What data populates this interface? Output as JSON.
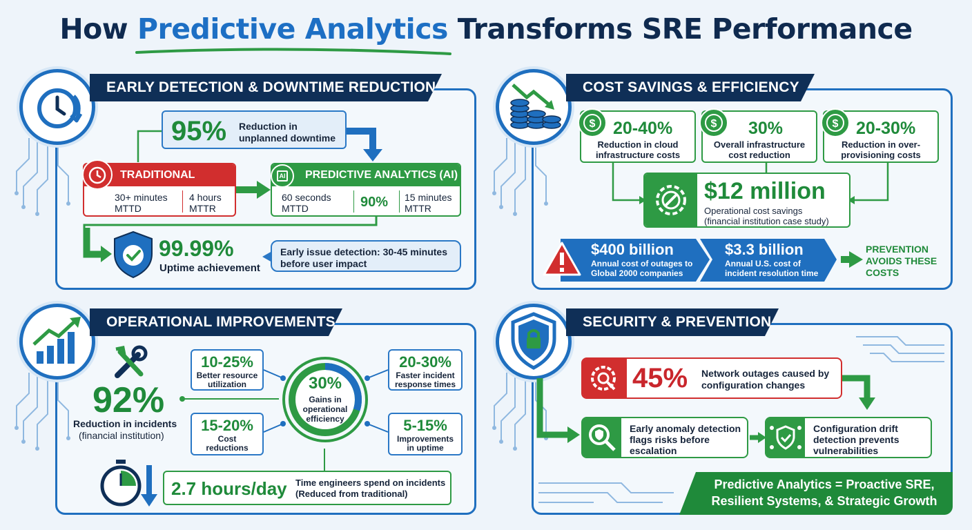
{
  "title": {
    "part1": "How ",
    "highlight": "Predictive Analytics",
    "part2": " Transforms SRE Performance"
  },
  "colors": {
    "navy": "#0f2f57",
    "blue": "#1f6fbf",
    "green": "#2e9a44",
    "red": "#d12e2e"
  },
  "early_detection": {
    "heading": "EARLY DETECTION & DOWNTIME REDUCTION",
    "icon": "clock-icon",
    "reduction": {
      "value": "95%",
      "label_1": "Reduction in",
      "label_2": "unplanned downtime"
    },
    "traditional": {
      "header": "TRADITIONAL",
      "mttd_value": "30+ minutes",
      "mttd_label": "MTTD",
      "mttr_value": "4 hours",
      "mttr_label": "MTTR"
    },
    "predictive": {
      "header": "PREDICTIVE ANALYTICS (AI)",
      "chip": "AI",
      "mttd_value": "60 seconds",
      "mttd_label": "MTTD",
      "improvement": "90%",
      "mttr_value": "15 minutes",
      "mttr_label": "MTTR"
    },
    "uptime": {
      "value": "99.99%",
      "label": "Uptime achievement"
    },
    "early_issue": {
      "line1": "Early issue detection: 30-45 minutes",
      "line2": "before user impact"
    }
  },
  "cost_savings": {
    "heading": "COST SAVINGS & EFFICIENCY",
    "icon": "coins-down-icon",
    "stats": [
      {
        "value": "20-40%",
        "line1": "Reduction in cloud",
        "line2": "infrastructure costs"
      },
      {
        "value": "30%",
        "line1": "Overall infrastructure",
        "line2": "cost reduction"
      },
      {
        "value": "20-30%",
        "line1": "Reduction in over-",
        "line2": "provisioning costs"
      }
    ],
    "center": {
      "value": "$12 million",
      "line1": "Operational cost savings",
      "line2": "(financial institution case study)"
    },
    "outage_cost": {
      "value": "$400 billion",
      "line1": "Annual cost of outages to",
      "line2": "Global 2000 companies"
    },
    "resolution_cost": {
      "value": "$3.3 billion",
      "line1": "Annual U.S. cost of",
      "line2": "incident resolution time"
    },
    "prevention": {
      "line1": "PREVENTION",
      "line2": "AVOIDS THESE",
      "line3": "COSTS"
    }
  },
  "operational": {
    "heading": "OPERATIONAL IMPROVEMENTS",
    "icon": "chart-growth-icon",
    "incidents": {
      "value": "92%",
      "line1": "Reduction in incidents",
      "line2": "(financial institution)"
    },
    "center": {
      "value": "30%",
      "line1": "Gains in",
      "line2": "operational",
      "line3": "efficiency"
    },
    "center_progress": 0.3,
    "stats": [
      {
        "value": "10-25%",
        "line1": "Better resource",
        "line2": "utilization"
      },
      {
        "value": "15-20%",
        "line1": "Cost",
        "line2": "reductions"
      },
      {
        "value": "20-30%",
        "line1": "Faster incident",
        "line2": "response times"
      },
      {
        "value": "5-15%",
        "line1": "Improvements",
        "line2": "in uptime"
      }
    ],
    "hours": {
      "value": "2.7 hours/day",
      "line1": "Time engineers spend on incidents",
      "line2": "(Reduced from traditional)"
    }
  },
  "security": {
    "heading": "SECURITY & PREVENTION",
    "icon": "shield-lock-icon",
    "outages": {
      "value": "45%",
      "line1": "Network outages caused by",
      "line2": "configuration changes"
    },
    "anomaly": {
      "line1": "Early anomaly detection",
      "line2": "flags risks before",
      "line3": "escalation"
    },
    "drift": {
      "line1": "Configuration drift",
      "line2": "detection prevents",
      "line3": "vulnerabilities"
    },
    "footer": {
      "line1": "Predictive Analytics = Proactive SRE,",
      "line2": "Resilient Systems, & Strategic Growth"
    }
  }
}
